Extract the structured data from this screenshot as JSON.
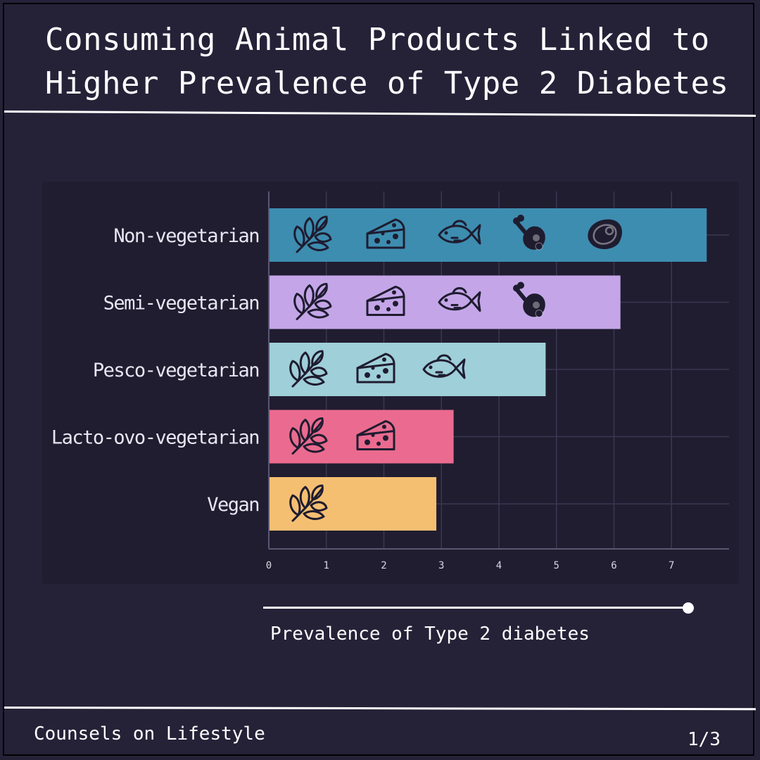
{
  "header": {
    "title": "Consuming Animal Products Linked to\nHigher Prevalence of Type 2 Diabetes"
  },
  "footer": {
    "brand": "Counsels on Lifestyle",
    "page": "1/3"
  },
  "slider": {
    "caption": "Prevalence of Type 2 diabetes"
  },
  "colors": {
    "background": "#252238",
    "panel": "#201d30",
    "grid": "#3a3752",
    "icon": "#1f1c30"
  },
  "chart_data": {
    "type": "bar",
    "orientation": "horizontal",
    "categories": [
      "Non-vegetarian",
      "Semi-vegetarian",
      "Pesco-vegetarian",
      "Lacto-ovo-vegetarian",
      "Vegan"
    ],
    "values": [
      7.6,
      6.1,
      4.8,
      3.2,
      2.9
    ],
    "bar_colors": [
      "#3d8db0",
      "#c4a6e8",
      "#9fcfd9",
      "#ea6b8f",
      "#f5bf72"
    ],
    "icons": [
      [
        "herb-icon",
        "cheese-icon",
        "fish-icon",
        "meat-leg-icon",
        "steak-icon"
      ],
      [
        "herb-icon",
        "cheese-icon",
        "fish-icon",
        "meat-leg-icon"
      ],
      [
        "herb-icon",
        "cheese-icon",
        "fish-icon"
      ],
      [
        "herb-icon",
        "cheese-icon"
      ],
      [
        "herb-icon"
      ]
    ],
    "xticks": [
      "0",
      "1",
      "2",
      "3",
      "4",
      "5",
      "6",
      "7"
    ],
    "xlim": [
      0,
      8
    ],
    "grid": true
  }
}
